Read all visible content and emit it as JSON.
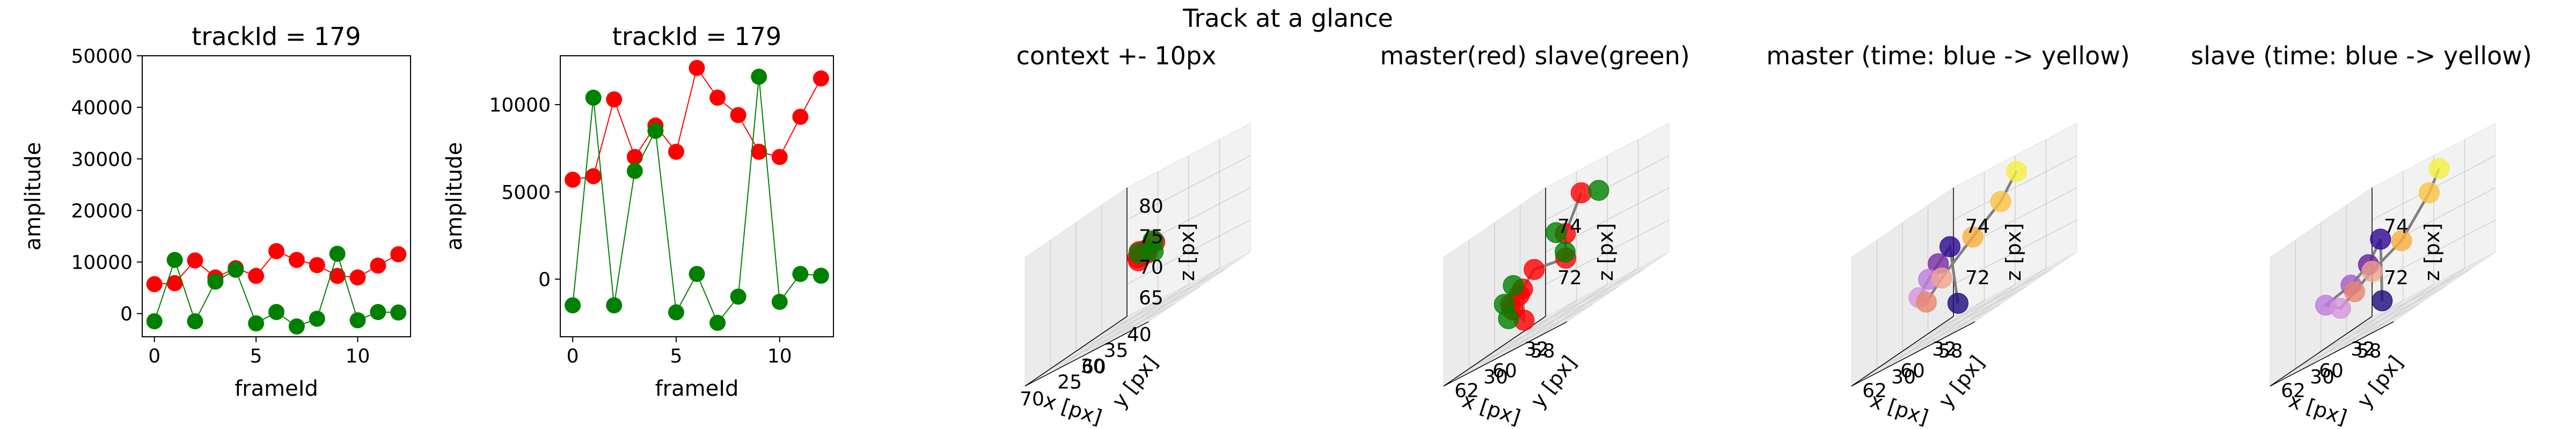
{
  "figure": {
    "suptitle": "Track at a glance",
    "colors": {
      "master": "#ff0000",
      "slave": "#008000",
      "track_line": "#808080"
    }
  },
  "chart_data": [
    {
      "type": "line",
      "title": "trackId = 179",
      "xlabel": "frameId",
      "ylabel": "amplitude",
      "xlim": [
        -0.6,
        12.6
      ],
      "ylim": [
        -4500,
        50000
      ],
      "xticks": [
        "0",
        "5",
        "10"
      ],
      "yticks": [
        "0",
        "10000",
        "20000",
        "30000",
        "40000",
        "50000"
      ],
      "x": [
        0,
        1,
        2,
        3,
        4,
        5,
        6,
        7,
        8,
        9,
        10,
        11,
        12
      ],
      "series": [
        {
          "color": "#ff0000",
          "values": [
            5700,
            5900,
            10300,
            7000,
            8800,
            7300,
            12100,
            10400,
            9400,
            7300,
            7000,
            9300,
            11500
          ]
        },
        {
          "color": "#008000",
          "values": [
            -1500,
            10400,
            -1500,
            6200,
            8500,
            -1900,
            300,
            -2500,
            -1000,
            11600,
            -1300,
            300,
            200
          ]
        }
      ]
    },
    {
      "type": "line",
      "title": "trackId = 179",
      "xlabel": "frameId",
      "ylabel": "amplitude",
      "xlim": [
        -0.6,
        12.6
      ],
      "ylim": [
        -3300,
        12800
      ],
      "xticks": [
        "0",
        "5",
        "10"
      ],
      "yticks": [
        "0",
        "5000",
        "10000"
      ],
      "x": [
        0,
        1,
        2,
        3,
        4,
        5,
        6,
        7,
        8,
        9,
        10,
        11,
        12
      ],
      "series": [
        {
          "color": "#ff0000",
          "values": [
            5700,
            5900,
            10300,
            7000,
            8800,
            7300,
            12100,
            10400,
            9400,
            7300,
            7000,
            9300,
            11500
          ]
        },
        {
          "color": "#008000",
          "values": [
            -1500,
            10400,
            -1500,
            6200,
            8500,
            -1900,
            300,
            -2500,
            -1000,
            11600,
            -1300,
            300,
            200
          ]
        }
      ]
    },
    {
      "type": "scatter",
      "title": "context +- 10px",
      "xlabel": "x [px]",
      "ylabel": "y [px]",
      "zlabel": "z [px]",
      "xticks": [
        "60",
        "70"
      ],
      "yticks": [
        "25",
        "30",
        "35",
        "40"
      ],
      "zticks": [
        "65",
        "70",
        "75",
        "80"
      ],
      "xlim": [
        52,
        72
      ],
      "ylim": [
        20,
        42
      ],
      "zlim": [
        62,
        83
      ],
      "points": [
        {
          "x": 60.5,
          "y": 31,
          "z": 72,
          "color": "#ff0000"
        },
        {
          "x": 61,
          "y": 31.5,
          "z": 72.5,
          "color": "#ff0000"
        },
        {
          "x": 61.5,
          "y": 30.5,
          "z": 71.5,
          "color": "#ff0000"
        },
        {
          "x": 60,
          "y": 32,
          "z": 73,
          "color": "#ff0000"
        },
        {
          "x": 62,
          "y": 31,
          "z": 72,
          "color": "#ff0000"
        },
        {
          "x": 61,
          "y": 30,
          "z": 73,
          "color": "#ff0000"
        },
        {
          "x": 59.5,
          "y": 31,
          "z": 73.5,
          "color": "#008000"
        },
        {
          "x": 62.5,
          "y": 32,
          "z": 72.5,
          "color": "#008000"
        },
        {
          "x": 61,
          "y": 33,
          "z": 71.5,
          "color": "#008000"
        }
      ]
    },
    {
      "type": "scatter",
      "title": "master(red) slave(green)",
      "xlabel": "x [px]",
      "ylabel": "y [px]",
      "zlabel": "z [px]",
      "xticks": [
        "58",
        "60",
        "62"
      ],
      "yticks": [
        "30",
        "32"
      ],
      "zticks": [
        "72",
        "74"
      ],
      "xlim": [
        57,
        63.5
      ],
      "ylim": [
        28.5,
        33.5
      ],
      "zlim": [
        70.5,
        75.5
      ],
      "points": [
        {
          "x": 59.8,
          "y": 31.8,
          "z": 74.8,
          "color": "#ff0000"
        },
        {
          "x": 60.1,
          "y": 31.3,
          "z": 73.6,
          "color": "#ff0000"
        },
        {
          "x": 60.4,
          "y": 31.6,
          "z": 72.6,
          "color": "#ff0000"
        },
        {
          "x": 61.2,
          "y": 30.8,
          "z": 72.9,
          "color": "#ff0000"
        },
        {
          "x": 61.6,
          "y": 30.6,
          "z": 72.4,
          "color": "#ff0000"
        },
        {
          "x": 62.1,
          "y": 30.9,
          "z": 72.2,
          "color": "#ff0000"
        },
        {
          "x": 61.2,
          "y": 30.3,
          "z": 71.2,
          "color": "#ff0000"
        },
        {
          "x": 62.0,
          "y": 30.5,
          "z": 71.8,
          "color": "#ff0000"
        },
        {
          "x": 61.8,
          "y": 30.2,
          "z": 72.1,
          "color": "#ff0000"
        },
        {
          "x": 59.2,
          "y": 32.1,
          "z": 74.5,
          "color": "#008000"
        },
        {
          "x": 60.8,
          "y": 31.5,
          "z": 73.8,
          "color": "#008000"
        },
        {
          "x": 60.0,
          "y": 31.2,
          "z": 72.9,
          "color": "#008000"
        },
        {
          "x": 62.3,
          "y": 30.8,
          "z": 72.7,
          "color": "#008000"
        },
        {
          "x": 61.8,
          "y": 30.1,
          "z": 71.6,
          "color": "#008000"
        },
        {
          "x": 63.2,
          "y": 31.2,
          "z": 72.1,
          "color": "#008000"
        }
      ],
      "path": [
        [
          59.8,
          31.8,
          74.8
        ],
        [
          60.1,
          31.3,
          73.6
        ],
        [
          60.4,
          31.6,
          72.6
        ],
        [
          61.2,
          30.8,
          72.9
        ],
        [
          61.6,
          30.6,
          72.4
        ],
        [
          61.2,
          30.3,
          71.2
        ],
        [
          62.0,
          30.5,
          71.8
        ]
      ]
    },
    {
      "type": "scatter",
      "title": "master (time: blue -> yellow)",
      "xlabel": "x [px]",
      "ylabel": "y [px]",
      "zlabel": "z [px]",
      "xticks": [
        "58",
        "60",
        "62"
      ],
      "yticks": [
        "30",
        "32"
      ],
      "zticks": [
        "72",
        "74"
      ],
      "xlim": [
        57,
        63.5
      ],
      "ylim": [
        28.5,
        33.5
      ],
      "zlim": [
        70.5,
        75.5
      ],
      "points": [
        {
          "x": 60.9,
          "y": 31.3,
          "z": 71.2,
          "color": "#1a0a7a"
        },
        {
          "x": 61.0,
          "y": 31.0,
          "z": 73.6,
          "color": "#2c0594"
        },
        {
          "x": 61.4,
          "y": 30.8,
          "z": 73.2,
          "color": "#7b2aa6"
        },
        {
          "x": 61.8,
          "y": 30.7,
          "z": 72.8,
          "color": "#c07be0"
        },
        {
          "x": 62.2,
          "y": 30.6,
          "z": 72.3,
          "color": "#d596d9"
        },
        {
          "x": 61.6,
          "y": 30.4,
          "z": 72.0,
          "color": "#e8876f"
        },
        {
          "x": 61.0,
          "y": 30.6,
          "z": 72.6,
          "color": "#f3a28c"
        },
        {
          "x": 59.9,
          "y": 31.1,
          "z": 73.5,
          "color": "#fbae3f"
        },
        {
          "x": 59.4,
          "y": 32.0,
          "z": 74.2,
          "color": "#fdc242"
        },
        {
          "x": 59.0,
          "y": 32.4,
          "z": 75.0,
          "color": "#f4ef3d"
        }
      ],
      "path": [
        [
          60.9,
          31.3,
          71.2
        ],
        [
          61.0,
          31.0,
          73.6
        ],
        [
          61.4,
          30.8,
          73.2
        ],
        [
          61.8,
          30.7,
          72.8
        ],
        [
          62.2,
          30.6,
          72.3
        ],
        [
          61.6,
          30.4,
          72.0
        ],
        [
          61.0,
          30.6,
          72.6
        ],
        [
          59.9,
          31.1,
          73.5
        ],
        [
          59.4,
          32.0,
          74.2
        ],
        [
          59.0,
          32.4,
          75.0
        ]
      ]
    },
    {
      "type": "scatter",
      "title": "slave (time: blue -> yellow)",
      "xlabel": "x [px]",
      "ylabel": "y [px]",
      "zlabel": "z [px]",
      "xticks": [
        "58",
        "60",
        "62"
      ],
      "yticks": [
        "30",
        "32"
      ],
      "zticks": [
        "72",
        "74"
      ],
      "xlim": [
        57,
        63.5
      ],
      "ylim": [
        28.5,
        33.5
      ],
      "zlim": [
        70.5,
        75.5
      ],
      "points": [
        {
          "x": 60.5,
          "y": 31.2,
          "z": 71.2,
          "color": "#1a0a7a"
        },
        {
          "x": 60.8,
          "y": 31.4,
          "z": 73.6,
          "color": "#2c0594"
        },
        {
          "x": 61.0,
          "y": 31.0,
          "z": 72.9,
          "color": "#6a1aa0"
        },
        {
          "x": 61.6,
          "y": 30.7,
          "z": 72.5,
          "color": "#a35bc6"
        },
        {
          "x": 62.4,
          "y": 30.2,
          "z": 72.3,
          "color": "#c07be0"
        },
        {
          "x": 61.4,
          "y": 30.0,
          "z": 71.9,
          "color": "#d596d9"
        },
        {
          "x": 61.2,
          "y": 30.5,
          "z": 72.2,
          "color": "#e8876f"
        },
        {
          "x": 60.6,
          "y": 30.8,
          "z": 72.6,
          "color": "#f3a28c"
        },
        {
          "x": 59.8,
          "y": 31.5,
          "z": 73.1,
          "color": "#fbae3f"
        },
        {
          "x": 59.2,
          "y": 32.3,
          "z": 74.3,
          "color": "#fdc242"
        },
        {
          "x": 59.0,
          "y": 32.6,
          "z": 75.0,
          "color": "#f4ef3d"
        }
      ],
      "path": [
        [
          60.5,
          31.2,
          71.2
        ],
        [
          60.8,
          31.4,
          73.6
        ],
        [
          61.0,
          31.0,
          72.9
        ],
        [
          61.6,
          30.7,
          72.5
        ],
        [
          62.4,
          30.2,
          72.3
        ],
        [
          61.4,
          30.0,
          71.9
        ],
        [
          61.2,
          30.5,
          72.2
        ],
        [
          60.6,
          30.8,
          72.6
        ],
        [
          59.8,
          31.5,
          73.1
        ],
        [
          59.2,
          32.3,
          74.3
        ],
        [
          59.0,
          32.6,
          75.0
        ]
      ]
    }
  ]
}
